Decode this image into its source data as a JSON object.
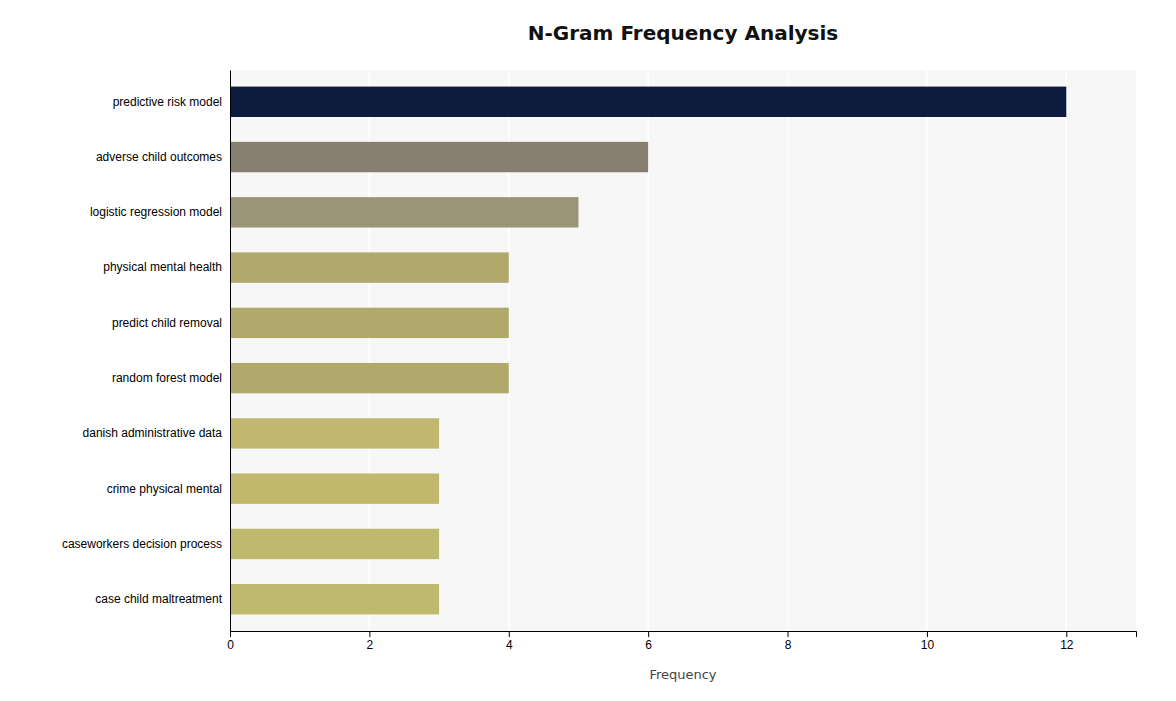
{
  "chart_data": {
    "type": "bar",
    "orientation": "horizontal",
    "title": "N-Gram Frequency Analysis",
    "xlabel": "Frequency",
    "categories": [
      "case child maltreatment",
      "caseworkers decision process",
      "crime physical mental",
      "danish administrative data",
      "random forest model",
      "predict child removal",
      "physical mental health",
      "logistic regression model",
      "adverse child outcomes",
      "predictive risk model"
    ],
    "values": [
      3,
      3,
      3,
      3,
      4,
      4,
      4,
      5,
      6,
      12
    ],
    "colors": [
      "#bfb96e",
      "#bfb96e",
      "#c0b86a",
      "#c0b870",
      "#b0a96b",
      "#b0a96b",
      "#b0a96b",
      "#9a9478",
      "#878070",
      "#0d1b3e"
    ],
    "xlim": [
      0,
      13
    ],
    "xticks": [
      0,
      2,
      4,
      6,
      8,
      10,
      12
    ],
    "grid": true
  }
}
